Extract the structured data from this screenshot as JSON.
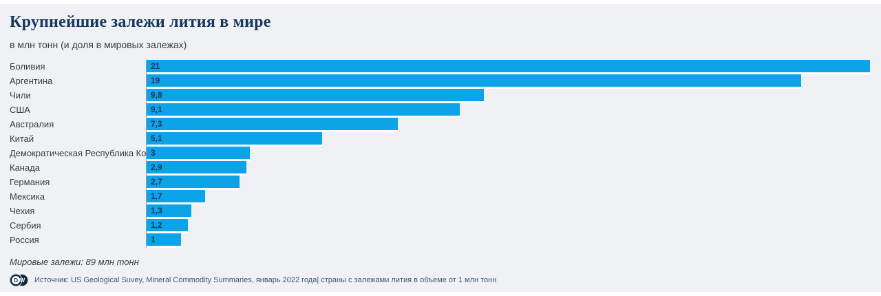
{
  "header": {
    "title": "Крупнейшие залежи лития в мире",
    "subtitle": "в млн тонн (и доля в мировых залежах)"
  },
  "chart_data": {
    "type": "bar",
    "orientation": "horizontal",
    "title": "Крупнейшие залежи лития в мире",
    "subtitle": "в млн тонн (и доля в мировых залежах)",
    "unit": "млн тонн",
    "categories": [
      "Боливия",
      "Аргентина",
      "Чили",
      "США",
      "Австралия",
      "Китай",
      "Демократическая Республика Конго",
      "Канада",
      "Германия",
      "Мексика",
      "Чехия",
      "Сербия",
      "Россия"
    ],
    "values": [
      21,
      19,
      9.8,
      9.1,
      7.3,
      5.1,
      3,
      2.9,
      2.7,
      1.7,
      1.3,
      1.2,
      1
    ],
    "value_labels": [
      "21",
      "19",
      "9,8",
      "9,1",
      "7,3",
      "5,1",
      "3",
      "2,9",
      "2,7",
      "1,7",
      "1,3",
      "1,2",
      "1"
    ],
    "xlabel": "",
    "ylabel": "",
    "xlim": [
      0,
      21
    ],
    "grid": false,
    "legend": false,
    "world_total": "89 млн тонн"
  },
  "footer": {
    "note": "Мировые залежи: 89 млн тонн",
    "source": "Источник: US Geological Suvey, Mineral Commodity Summaries, январь 2022 года| страны с залежами лития в объеме от 1 млн тонн"
  },
  "logo": {
    "d": "D",
    "w": "W"
  },
  "colors": {
    "background": "#eff1f4",
    "bar": "#0da3e9",
    "title": "#15365f",
    "value_label": "#17365a",
    "axis_line": "#98a0a8",
    "label_text": "#3b3b3b",
    "source_text": "#44566b",
    "logo_navy": "#0c2940"
  }
}
